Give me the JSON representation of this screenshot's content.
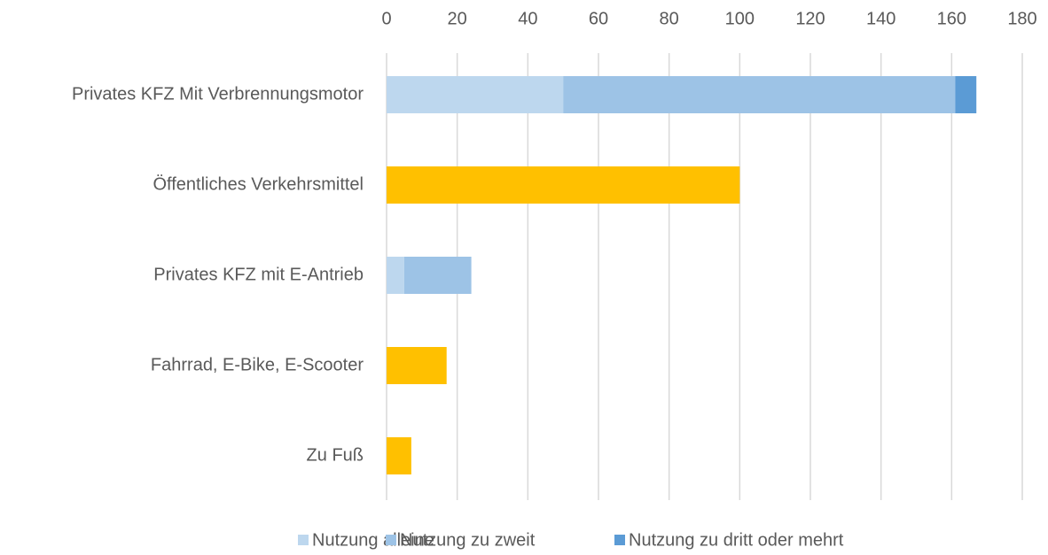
{
  "chart_data": {
    "type": "bar",
    "orientation": "horizontal",
    "stacked": true,
    "categories": [
      "Privates KFZ Mit Verbrennungsmotor",
      "Öffentliches Verkehrsmittel",
      "Privates KFZ mit E-Antrieb",
      "Fahrrad, E-Bike, E-Scooter",
      "Zu Fuß"
    ],
    "series": [
      {
        "name": "Nutzung alleine",
        "color": "#bdd7ee",
        "values": [
          50,
          null,
          5,
          null,
          null
        ]
      },
      {
        "name": "Nutzung zu zweit",
        "color": "#9dc3e6",
        "values": [
          111,
          null,
          19,
          null,
          null
        ]
      },
      {
        "name": "Nutzung zu dritt oder mehrt",
        "color": "#5b9bd5",
        "values": [
          6,
          null,
          null,
          null,
          null
        ]
      },
      {
        "color": "#ffc000",
        "values": [
          null,
          100,
          null,
          17,
          7
        ]
      }
    ],
    "xlim": [
      0,
      180
    ],
    "xticks": [
      0,
      20,
      40,
      60,
      80,
      100,
      120,
      140,
      160,
      180
    ],
    "grid": true,
    "legend": "bottom"
  }
}
